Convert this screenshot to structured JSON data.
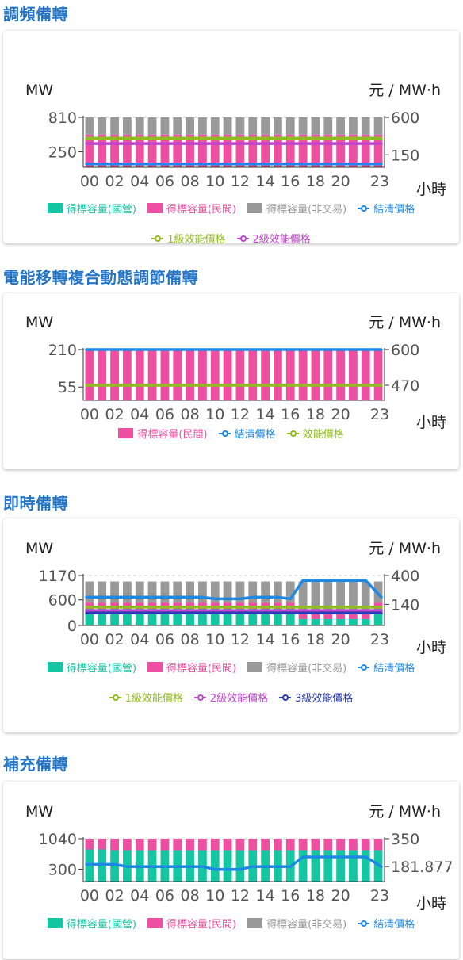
{
  "colors": {
    "state": "#14c6a2",
    "private": "#ee4fa1",
    "nontrade": "#999999",
    "clearing": "#1e88e5",
    "eff1": "#8fbc1e",
    "eff2": "#c043d0",
    "eff3": "#2a3bb3"
  },
  "sections": [
    {
      "title": "調頻備轉",
      "y_unit_left": "MW",
      "y_unit_right": "元 / MW·h",
      "x_unit": "小時",
      "legend_rows": [
        [
          {
            "label": "得標容量(國營)",
            "type": "box",
            "color_key": "state"
          },
          {
            "label": "得標容量(民間)",
            "type": "box",
            "color_key": "private"
          },
          {
            "label": "得標容量(非交易)",
            "type": "box",
            "color_key": "nontrade"
          },
          {
            "label": "結清價格",
            "type": "line",
            "color_key": "clearing"
          }
        ],
        [
          {
            "label": "1級效能價格",
            "type": "line",
            "color_key": "eff1"
          },
          {
            "label": "2級效能價格",
            "type": "line",
            "color_key": "eff2"
          }
        ]
      ],
      "chart_data": {
        "type": "bar",
        "x": [
          "00",
          "01",
          "02",
          "03",
          "04",
          "05",
          "06",
          "07",
          "08",
          "09",
          "10",
          "11",
          "12",
          "13",
          "14",
          "15",
          "16",
          "17",
          "18",
          "19",
          "20",
          "21",
          "22",
          "23"
        ],
        "x_tick_labels": [
          "00",
          "02",
          "04",
          "06",
          "08",
          "10",
          "12",
          "14",
          "16",
          "18",
          "20",
          "23"
        ],
        "y_left": {
          "ticks": [
            250,
            810
          ],
          "ylim": [
            0,
            810
          ]
        },
        "y_right": {
          "ticks": [
            150,
            600
          ],
          "ylim": [
            0,
            600
          ]
        },
        "stacked_series": [
          {
            "name": "得標容量(國營)",
            "color_key": "state",
            "values": [
              0,
              0,
              0,
              0,
              0,
              0,
              0,
              0,
              0,
              0,
              0,
              0,
              0,
              0,
              0,
              0,
              0,
              0,
              0,
              0,
              0,
              0,
              0,
              0
            ]
          },
          {
            "name": "得標容量(民間)",
            "color_key": "private",
            "values": [
              530,
              530,
              530,
              530,
              530,
              530,
              530,
              530,
              530,
              530,
              530,
              530,
              530,
              530,
              530,
              530,
              530,
              530,
              530,
              530,
              530,
              530,
              530,
              530
            ]
          },
          {
            "name": "得標容量(非交易)",
            "color_key": "nontrade",
            "values": [
              280,
              280,
              280,
              280,
              280,
              280,
              280,
              280,
              280,
              280,
              280,
              280,
              280,
              280,
              280,
              280,
              280,
              280,
              280,
              280,
              280,
              280,
              280,
              280
            ]
          }
        ],
        "line_series": [
          {
            "name": "結清價格",
            "color_key": "clearing",
            "values": [
              40,
              40,
              40,
              40,
              40,
              40,
              40,
              40,
              40,
              40,
              40,
              40,
              40,
              40,
              40,
              40,
              40,
              40,
              40,
              40,
              40,
              40,
              40,
              40
            ]
          },
          {
            "name": "1級效能價格",
            "color_key": "eff1",
            "values": [
              350,
              350,
              350,
              350,
              350,
              350,
              350,
              350,
              350,
              350,
              350,
              350,
              350,
              350,
              350,
              350,
              350,
              350,
              350,
              350,
              350,
              350,
              350,
              350
            ]
          },
          {
            "name": "2級效能價格",
            "color_key": "eff2",
            "values": [
              285,
              285,
              285,
              285,
              285,
              285,
              285,
              285,
              285,
              285,
              285,
              285,
              285,
              285,
              285,
              285,
              285,
              285,
              285,
              285,
              285,
              285,
              285,
              285
            ]
          }
        ]
      }
    },
    {
      "title": "電能移轉複合動態調節備轉",
      "y_unit_left": "MW",
      "y_unit_right": "元 / MW·h",
      "x_unit": "小時",
      "legend_rows": [
        [
          {
            "label": "得標容量(民間)",
            "type": "box",
            "color_key": "private"
          },
          {
            "label": "結清價格",
            "type": "line",
            "color_key": "clearing"
          },
          {
            "label": "效能價格",
            "type": "line",
            "color_key": "eff1"
          }
        ]
      ],
      "chart_data": {
        "type": "bar",
        "x": [
          "00",
          "01",
          "02",
          "03",
          "04",
          "05",
          "06",
          "07",
          "08",
          "09",
          "10",
          "11",
          "12",
          "13",
          "14",
          "15",
          "16",
          "17",
          "18",
          "19",
          "20",
          "21",
          "22",
          "23"
        ],
        "x_tick_labels": [
          "00",
          "02",
          "04",
          "06",
          "08",
          "10",
          "12",
          "14",
          "16",
          "18",
          "20",
          "23"
        ],
        "y_left": {
          "ticks": [
            55,
            210
          ],
          "ylim": [
            0,
            210
          ]
        },
        "y_right": {
          "ticks": [
            470,
            600
          ],
          "ylim": [
            415,
            600
          ]
        },
        "stacked_series": [
          {
            "name": "得標容量(民間)",
            "color_key": "private",
            "values": [
              210,
              210,
              210,
              210,
              210,
              210,
              210,
              210,
              210,
              210,
              210,
              210,
              210,
              210,
              210,
              210,
              210,
              210,
              210,
              210,
              210,
              210,
              210,
              210
            ]
          }
        ],
        "line_series": [
          {
            "name": "結清價格",
            "color_key": "clearing",
            "values": [
              600,
              600,
              600,
              600,
              600,
              600,
              600,
              600,
              600,
              600,
              600,
              600,
              600,
              600,
              600,
              600,
              600,
              600,
              600,
              600,
              600,
              600,
              600,
              600
            ]
          },
          {
            "name": "效能價格",
            "color_key": "eff1",
            "values": [
              470,
              470,
              470,
              470,
              470,
              470,
              470,
              470,
              470,
              470,
              470,
              470,
              470,
              470,
              470,
              470,
              470,
              470,
              470,
              470,
              470,
              470,
              470,
              470
            ]
          }
        ]
      }
    },
    {
      "title": "即時備轉",
      "y_unit_left": "MW",
      "y_unit_right": "元 / MW·h",
      "x_unit": "小時",
      "legend_rows": [
        [
          {
            "label": "得標容量(國營)",
            "type": "box",
            "color_key": "state"
          },
          {
            "label": "得標容量(民間)",
            "type": "box",
            "color_key": "private"
          },
          {
            "label": "得標容量(非交易)",
            "type": "box",
            "color_key": "nontrade"
          },
          {
            "label": "結清價格",
            "type": "line",
            "color_key": "clearing"
          }
        ],
        [
          {
            "label": "1級效能價格",
            "type": "line",
            "color_key": "eff1"
          },
          {
            "label": "2級效能價格",
            "type": "line",
            "color_key": "eff2"
          },
          {
            "label": "3級效能價格",
            "type": "line",
            "color_key": "eff3"
          }
        ]
      ],
      "chart_data": {
        "type": "bar",
        "x": [
          "00",
          "01",
          "02",
          "03",
          "04",
          "05",
          "06",
          "07",
          "08",
          "09",
          "10",
          "11",
          "12",
          "13",
          "14",
          "15",
          "16",
          "17",
          "18",
          "19",
          "20",
          "21",
          "22",
          "23"
        ],
        "x_tick_labels": [
          "00",
          "02",
          "04",
          "06",
          "08",
          "10",
          "12",
          "14",
          "16",
          "18",
          "20",
          "23"
        ],
        "y_left": {
          "ticks": [
            0,
            600,
            1170
          ],
          "ylim": [
            0,
            1170
          ]
        },
        "y_right": {
          "ticks": [
            140,
            400
          ],
          "ylim": [
            -50,
            400
          ]
        },
        "stacked_series": [
          {
            "name": "得標容量(國營)",
            "color_key": "state",
            "values": [
              390,
              390,
              390,
              390,
              390,
              390,
              390,
              390,
              390,
              390,
              390,
              390,
              390,
              390,
              390,
              390,
              390,
              150,
              150,
              150,
              150,
              150,
              150,
              390
            ]
          },
          {
            "name": "得標容量(民間)",
            "color_key": "private",
            "values": [
              140,
              140,
              140,
              140,
              140,
              140,
              140,
              140,
              140,
              140,
              140,
              140,
              140,
              140,
              140,
              140,
              140,
              140,
              140,
              140,
              140,
              140,
              140,
              140
            ]
          },
          {
            "name": "得標容量(非交易)",
            "color_key": "nontrade",
            "values": [
              500,
              500,
              500,
              500,
              500,
              500,
              500,
              500,
              500,
              500,
              500,
              500,
              500,
              500,
              500,
              500,
              500,
              740,
              740,
              740,
              740,
              740,
              740,
              500
            ]
          }
        ],
        "line_series": [
          {
            "name": "結清價格",
            "color_key": "clearing",
            "values": [
              205,
              205,
              205,
              205,
              205,
              205,
              205,
              205,
              205,
              205,
              190,
              190,
              190,
              205,
              205,
              205,
              190,
              355,
              355,
              355,
              355,
              355,
              355,
              205
            ]
          },
          {
            "name": "1級效能價格",
            "color_key": "eff1",
            "values": [
              115,
              115,
              115,
              115,
              115,
              115,
              115,
              115,
              115,
              115,
              115,
              115,
              115,
              115,
              115,
              115,
              115,
              115,
              115,
              115,
              115,
              115,
              115,
              115
            ]
          },
          {
            "name": "2級效能價格",
            "color_key": "eff2",
            "values": [
              85,
              85,
              85,
              85,
              85,
              85,
              85,
              85,
              85,
              85,
              85,
              85,
              85,
              85,
              85,
              85,
              85,
              85,
              85,
              85,
              85,
              85,
              85,
              85
            ]
          },
          {
            "name": "3級效能價格",
            "color_key": "eff3",
            "values": [
              62,
              62,
              62,
              62,
              62,
              62,
              62,
              62,
              62,
              62,
              62,
              62,
              62,
              62,
              62,
              62,
              62,
              62,
              62,
              62,
              62,
              62,
              62,
              62
            ]
          }
        ]
      }
    },
    {
      "title": "補充備轉",
      "y_unit_left": "MW",
      "y_unit_right": "元 / MW·h",
      "x_unit": "小時",
      "legend_rows": [
        [
          {
            "label": "得標容量(國營)",
            "type": "box",
            "color_key": "state"
          },
          {
            "label": "得標容量(民間)",
            "type": "box",
            "color_key": "private"
          },
          {
            "label": "得標容量(非交易)",
            "type": "box",
            "color_key": "nontrade"
          },
          {
            "label": "結清價格",
            "type": "line",
            "color_key": "clearing"
          }
        ]
      ],
      "chart_data": {
        "type": "bar",
        "x": [
          "00",
          "01",
          "02",
          "03",
          "04",
          "05",
          "06",
          "07",
          "08",
          "09",
          "10",
          "11",
          "12",
          "13",
          "14",
          "15",
          "16",
          "17",
          "18",
          "19",
          "20",
          "21",
          "22",
          "23"
        ],
        "x_tick_labels": [
          "00",
          "02",
          "04",
          "06",
          "08",
          "10",
          "12",
          "14",
          "16",
          "18",
          "20",
          "23"
        ],
        "y_left": {
          "ticks": [
            300,
            1040
          ],
          "ylim": [
            0,
            1040
          ]
        },
        "y_right": {
          "ticks": [
            181.877,
            350
          ],
          "ylim": [
            92,
            350
          ]
        },
        "stacked_series": [
          {
            "name": "得標容量(國營)",
            "color_key": "state",
            "values": [
              780,
              780,
              760,
              760,
              760,
              760,
              760,
              760,
              760,
              760,
              760,
              760,
              760,
              760,
              760,
              760,
              760,
              760,
              760,
              760,
              760,
              760,
              760,
              760
            ]
          },
          {
            "name": "得標容量(民間)",
            "color_key": "private",
            "values": [
              260,
              260,
              280,
              280,
              280,
              280,
              280,
              280,
              280,
              280,
              280,
              280,
              280,
              280,
              280,
              280,
              280,
              280,
              280,
              280,
              280,
              280,
              280,
              280
            ]
          },
          {
            "name": "得標容量(非交易)",
            "color_key": "nontrade",
            "values": [
              0,
              0,
              0,
              0,
              0,
              0,
              0,
              0,
              0,
              0,
              0,
              0,
              0,
              0,
              0,
              0,
              0,
              0,
              0,
              0,
              0,
              0,
              0,
              0
            ]
          }
        ],
        "line_series": [
          {
            "name": "結清價格",
            "color_key": "clearing",
            "values": [
              195,
              195,
              195,
              182,
              182,
              182,
              182,
              182,
              182,
              182,
              165,
              165,
              165,
              182,
              182,
              182,
              182,
              240,
              240,
              240,
              240,
              240,
              240,
              181.877
            ]
          }
        ]
      }
    }
  ]
}
